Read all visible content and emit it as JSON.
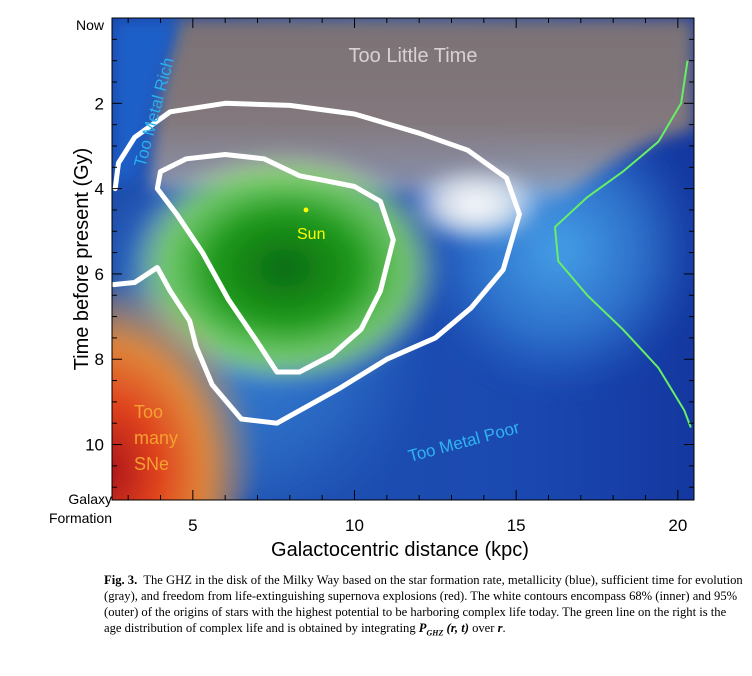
{
  "chart_data": {
    "type": "heatmap",
    "xlabel": "Galactocentric distance (kpc)",
    "ylabel": "Time before present (Gy)",
    "xlim": [
      2.5,
      20.5
    ],
    "ylim": [
      0,
      11.3
    ],
    "xticks": [
      5,
      10,
      15,
      20
    ],
    "yticks": [
      2,
      4,
      6,
      8,
      10
    ],
    "y_end_labels": {
      "top": "Now",
      "bottom_line1": "Galaxy",
      "bottom_line2": "Formation"
    },
    "regions": [
      {
        "label": "Too Little Time",
        "color": "#7f7478"
      },
      {
        "label": "Too Metal Rich",
        "color": "#2a8cd8"
      },
      {
        "label": "Too Metal Poor",
        "color": "#1e4fb8"
      },
      {
        "label_lines": [
          "Too",
          "many",
          "SNe"
        ],
        "color": "#d8391a"
      }
    ],
    "sun": {
      "label": "Sun",
      "x": 8.5,
      "y": 4.5,
      "color": "#ffff00"
    },
    "contours": [
      {
        "level": "68%",
        "name": "inner",
        "color": "#ffffff",
        "points": [
          [
            8.3,
            3.7
          ],
          [
            9.0,
            3.8
          ],
          [
            10.0,
            3.95
          ],
          [
            10.8,
            4.3
          ],
          [
            11.2,
            5.2
          ],
          [
            10.8,
            6.4
          ],
          [
            10.2,
            7.3
          ],
          [
            9.3,
            7.9
          ],
          [
            8.3,
            8.3
          ],
          [
            7.6,
            8.3
          ],
          [
            7.0,
            7.6
          ],
          [
            6.1,
            6.6
          ],
          [
            5.3,
            5.5
          ],
          [
            4.5,
            4.6
          ],
          [
            3.9,
            4.0
          ],
          [
            4.0,
            3.6
          ],
          [
            4.8,
            3.3
          ],
          [
            6.0,
            3.2
          ],
          [
            7.2,
            3.3
          ]
        ]
      },
      {
        "level": "95%",
        "name": "outer",
        "color": "#ffffff",
        "open_path": [
          [
            2.6,
            4.0
          ],
          [
            2.7,
            3.4
          ],
          [
            3.2,
            2.8
          ],
          [
            4.3,
            2.2
          ],
          [
            6.0,
            2.0
          ],
          [
            8.0,
            2.05
          ],
          [
            10.0,
            2.25
          ],
          [
            12.0,
            2.7
          ],
          [
            13.5,
            3.1
          ],
          [
            14.7,
            3.75
          ],
          [
            15.1,
            4.6
          ],
          [
            14.6,
            5.9
          ],
          [
            13.6,
            6.8
          ],
          [
            12.5,
            7.5
          ],
          [
            11.0,
            8.0
          ],
          [
            9.5,
            8.7
          ],
          [
            7.6,
            9.5
          ],
          [
            6.5,
            9.4
          ],
          [
            5.6,
            8.6
          ],
          [
            5.1,
            7.7
          ],
          [
            4.9,
            7.1
          ],
          [
            4.3,
            6.4
          ],
          [
            3.9,
            5.85
          ],
          [
            3.2,
            6.2
          ],
          [
            2.55,
            6.25
          ]
        ]
      }
    ],
    "age_distribution_line": {
      "color": "#66ee66",
      "points": [
        [
          20.3,
          1.0
        ],
        [
          20.1,
          2.0
        ],
        [
          19.4,
          2.9
        ],
        [
          18.3,
          3.6
        ],
        [
          17.2,
          4.2
        ],
        [
          16.2,
          4.9
        ],
        [
          16.3,
          5.7
        ],
        [
          17.2,
          6.5
        ],
        [
          18.3,
          7.3
        ],
        [
          19.4,
          8.2
        ],
        [
          20.2,
          9.2
        ],
        [
          20.4,
          9.6
        ]
      ]
    }
  },
  "caption": {
    "fig_label": "Fig. 3.",
    "text_1": "The GHZ in the disk of the Milky Way based on the star formation rate,  metallicity (blue), sufficient time for evolution (gray), and freedom from life-extinguishing supernova explosions (red).   The white contours encompass 68% (inner) and 95% (outer) of the origins of stars with the highest potential to be harboring complex life today.  The green line on the right is the age distribution of complex life and is obtained by integrating",
    "formula_main": "P",
    "formula_sub": "GHZ",
    "formula_args": "(r, t)",
    "text_2": "over",
    "formula_var": "r",
    "text_3": "."
  }
}
